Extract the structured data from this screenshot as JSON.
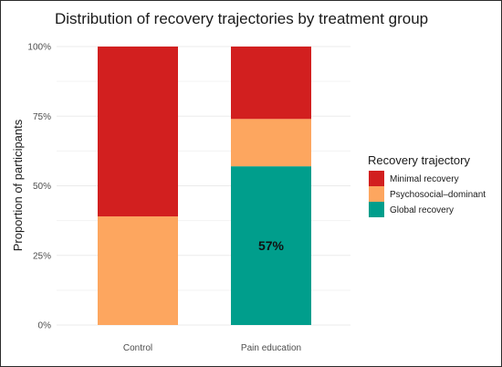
{
  "chart_data": {
    "type": "bar",
    "stacked": true,
    "title": "Distribution of recovery trajectories by treatment group",
    "xlabel": "",
    "ylabel": "Proportion of participants",
    "ylim": [
      0,
      1
    ],
    "y_ticks": [
      "0%",
      "25%",
      "50%",
      "75%",
      "100%"
    ],
    "y_tick_values": [
      0,
      0.25,
      0.5,
      0.75,
      1.0
    ],
    "grid": true,
    "legend_position": "right",
    "legend_title": "Recovery trajectory",
    "categories": [
      "Control",
      "Pain education"
    ],
    "series": [
      {
        "name": "Global recovery",
        "color": "#009E8C",
        "values": [
          0,
          0.57
        ]
      },
      {
        "name": "Psychosocial–dominant",
        "color": "#FDA65F",
        "values": [
          0.39,
          0.17
        ]
      },
      {
        "name": "Minimal recovery",
        "color": "#D21F1F",
        "values": [
          0.61,
          0.26
        ]
      }
    ],
    "legend_order": [
      "Minimal recovery",
      "Psychosocial–dominant",
      "Global recovery"
    ],
    "data_labels": [
      {
        "category": "Pain education",
        "series": "Global recovery",
        "text": "57%"
      }
    ]
  }
}
